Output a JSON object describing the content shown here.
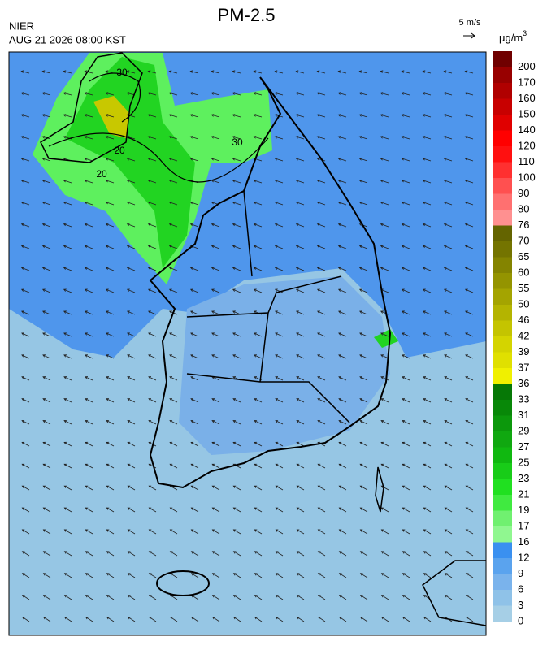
{
  "header": {
    "title": "PM-2.5",
    "agency": "NIER",
    "time": "AUG 21 2026 08:00 KST"
  },
  "wind": {
    "scale_label": "5 m/s"
  },
  "map": {
    "contour_labels": [
      "30",
      "20",
      "20",
      "30"
    ]
  },
  "colorbar": {
    "unit": "μg/m",
    "unit_sup": "3",
    "labels": [
      "200",
      "170",
      "160",
      "150",
      "140",
      "120",
      "110",
      "100",
      "90",
      "80",
      "76",
      "70",
      "65",
      "60",
      "55",
      "50",
      "46",
      "42",
      "39",
      "37",
      "36",
      "33",
      "31",
      "29",
      "27",
      "25",
      "23",
      "21",
      "19",
      "17",
      "16",
      "12",
      "9",
      "6",
      "3",
      "0"
    ],
    "colors": [
      "#700000",
      "#980000",
      "#b00000",
      "#c80000",
      "#e00000",
      "#ff0000",
      "#ff1010",
      "#ff3030",
      "#ff5050",
      "#ff7070",
      "#ff9090",
      "#646400",
      "#747400",
      "#848400",
      "#949400",
      "#a4a400",
      "#b4b400",
      "#c4c400",
      "#d4d400",
      "#e0e000",
      "#f0f000",
      "#067806",
      "#088808",
      "#0c980c",
      "#10a810",
      "#10b810",
      "#18cc18",
      "#20e020",
      "#40ea40",
      "#70f070",
      "#90f790",
      "#3a90f0",
      "#5aa3ee",
      "#7ab3ec",
      "#8fc2e8",
      "#a6cfe6"
    ]
  }
}
